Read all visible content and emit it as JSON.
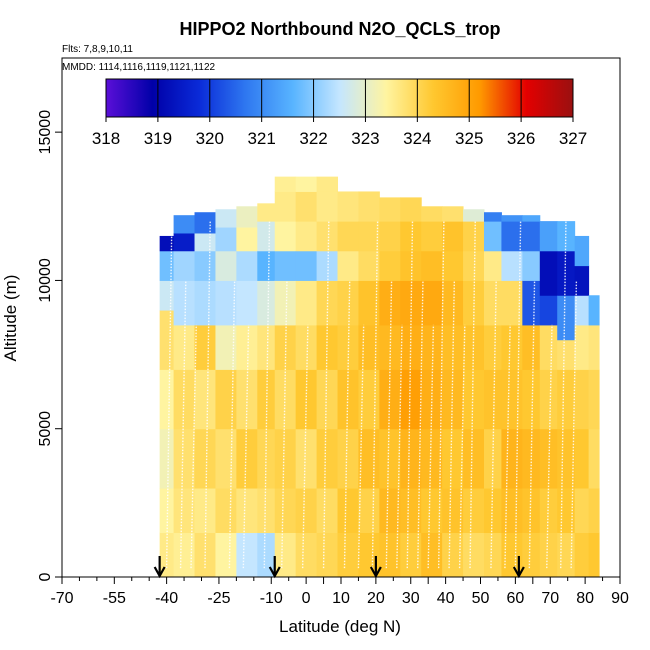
{
  "chart_data": {
    "type": "heatmap",
    "title": "HIPPO2 Northbound N2O_QCLS_trop",
    "flights_label": "Flts: 7,8,9,10,11",
    "mmdd_label": "MMDD: 1114,1116,1119,1121,1122",
    "xlabel": "Latitude (deg N)",
    "ylabel": "Altitude (m)",
    "xlim": [
      -70,
      90
    ],
    "ylim": [
      0,
      17500
    ],
    "x_tick_labels": [
      "-70",
      "-55",
      "-40",
      "-25",
      "-10",
      "0",
      "10",
      "20",
      "30",
      "40",
      "50",
      "60",
      "70",
      "80",
      "90"
    ],
    "y_tick_labels": [
      "0",
      "5000",
      "10000",
      "15000"
    ],
    "colorbar": {
      "labels": [
        "318",
        "319",
        "320",
        "321",
        "322",
        "323",
        "324",
        "325",
        "326",
        "327"
      ],
      "min": 318,
      "max": 327,
      "colors": [
        "#5b0fd8",
        "#0000a8",
        "#0a2bd8",
        "#2f78f0",
        "#58b4ff",
        "#c4e6ff",
        "#fff4a0",
        "#ffc830",
        "#ff9a00",
        "#e30000",
        "#9a1010"
      ]
    },
    "flight_markers_lat": [
      -42,
      -9,
      20,
      61
    ],
    "columns": [
      {
        "lat0": -42,
        "lat1": -38,
        "alt_top": 11500,
        "levels": [
          [
            0,
            323.6
          ],
          [
            1500,
            323.4
          ],
          [
            3000,
            323.2
          ],
          [
            5000,
            323.4
          ],
          [
            7000,
            323.8
          ],
          [
            9000,
            322.6
          ],
          [
            10000,
            321.8
          ],
          [
            11000,
            319.2
          ]
        ]
      },
      {
        "lat0": -38,
        "lat1": -32,
        "alt_top": 12200,
        "levels": [
          [
            0,
            323.5
          ],
          [
            1500,
            323.7
          ],
          [
            3000,
            323.8
          ],
          [
            5000,
            323.9
          ],
          [
            7000,
            323.6
          ],
          [
            8500,
            322.4
          ],
          [
            10000,
            322.2
          ],
          [
            11000,
            319.5
          ],
          [
            11600,
            321.0
          ]
        ]
      },
      {
        "lat0": -32,
        "lat1": -26,
        "alt_top": 12300,
        "levels": [
          [
            0,
            323.8
          ],
          [
            1500,
            323.6
          ],
          [
            3000,
            324.0
          ],
          [
            5000,
            323.7
          ],
          [
            7000,
            324.2
          ],
          [
            8500,
            322.3
          ],
          [
            10000,
            322.0
          ],
          [
            11000,
            322.6
          ],
          [
            11600,
            320.6
          ]
        ]
      },
      {
        "lat0": -26,
        "lat1": -20,
        "alt_top": 12400,
        "levels": [
          [
            0,
            323.4
          ],
          [
            1500,
            323.9
          ],
          [
            3000,
            323.8
          ],
          [
            5000,
            324.1
          ],
          [
            7000,
            323.2
          ],
          [
            8500,
            322.4
          ],
          [
            10000,
            322.8
          ],
          [
            11000,
            322.2
          ],
          [
            11800,
            322.6
          ]
        ]
      },
      {
        "lat0": -20,
        "lat1": -14,
        "alt_top": 12500,
        "levels": [
          [
            0,
            322.5
          ],
          [
            1500,
            323.7
          ],
          [
            3000,
            324.2
          ],
          [
            5000,
            323.8
          ],
          [
            7000,
            323.5
          ],
          [
            8500,
            322.5
          ],
          [
            10000,
            322.3
          ],
          [
            11000,
            323.4
          ],
          [
            11800,
            323.1
          ]
        ]
      },
      {
        "lat0": -14,
        "lat1": -9,
        "alt_top": 12600,
        "levels": [
          [
            0,
            322.3
          ],
          [
            1500,
            323.8
          ],
          [
            3000,
            324.0
          ],
          [
            5000,
            324.2
          ],
          [
            7000,
            323.7
          ],
          [
            8500,
            322.8
          ],
          [
            10000,
            321.6
          ],
          [
            11000,
            322.7
          ],
          [
            12000,
            323.6
          ]
        ]
      },
      {
        "lat0": -9,
        "lat1": -3,
        "alt_top": 13500,
        "levels": [
          [
            0,
            323.6
          ],
          [
            1500,
            324.0
          ],
          [
            3000,
            324.1
          ],
          [
            5000,
            323.9
          ],
          [
            7000,
            324.1
          ],
          [
            8500,
            323.2
          ],
          [
            10000,
            321.8
          ],
          [
            11000,
            323.4
          ],
          [
            12000,
            323.6
          ],
          [
            13000,
            323.5
          ]
        ]
      },
      {
        "lat0": -3,
        "lat1": 3,
        "alt_top": 13500,
        "levels": [
          [
            0,
            323.9
          ],
          [
            1500,
            324.1
          ],
          [
            3000,
            323.8
          ],
          [
            5000,
            324.3
          ],
          [
            7000,
            323.9
          ],
          [
            8500,
            323.6
          ],
          [
            10000,
            321.8
          ],
          [
            11000,
            323.6
          ],
          [
            12000,
            323.8
          ],
          [
            13000,
            323.4
          ]
        ]
      },
      {
        "lat0": 3,
        "lat1": 9,
        "alt_top": 13500,
        "levels": [
          [
            0,
            324.0
          ],
          [
            1500,
            323.9
          ],
          [
            3000,
            324.2
          ],
          [
            5000,
            324.0
          ],
          [
            7000,
            324.3
          ],
          [
            8500,
            324.0
          ],
          [
            10000,
            322.3
          ],
          [
            11000,
            323.8
          ],
          [
            12000,
            323.6
          ],
          [
            13000,
            323.6
          ]
        ]
      },
      {
        "lat0": 9,
        "lat1": 15,
        "alt_top": 13000,
        "levels": [
          [
            0,
            324.2
          ],
          [
            1500,
            324.3
          ],
          [
            3000,
            324.1
          ],
          [
            5000,
            324.4
          ],
          [
            7000,
            324.2
          ],
          [
            8500,
            324.1
          ],
          [
            10000,
            323.6
          ],
          [
            11000,
            324.0
          ],
          [
            12000,
            323.7
          ]
        ]
      },
      {
        "lat0": 15,
        "lat1": 21,
        "alt_top": 13000,
        "levels": [
          [
            0,
            324.3
          ],
          [
            1500,
            324.1
          ],
          [
            3000,
            324.5
          ],
          [
            5000,
            324.2
          ],
          [
            7000,
            324.5
          ],
          [
            8500,
            324.4
          ],
          [
            10000,
            323.9
          ],
          [
            11000,
            324.0
          ],
          [
            12000,
            323.8
          ]
        ]
      },
      {
        "lat0": 21,
        "lat1": 27,
        "alt_top": 12800,
        "levels": [
          [
            0,
            324.4
          ],
          [
            1500,
            324.6
          ],
          [
            3000,
            324.4
          ],
          [
            5000,
            324.8
          ],
          [
            7000,
            324.6
          ],
          [
            8500,
            324.8
          ],
          [
            10000,
            324.2
          ],
          [
            11000,
            324.1
          ],
          [
            12000,
            323.9
          ]
        ]
      },
      {
        "lat0": 27,
        "lat1": 33,
        "alt_top": 12800,
        "levels": [
          [
            0,
            324.2
          ],
          [
            1500,
            324.5
          ],
          [
            3000,
            324.7
          ],
          [
            5000,
            325.1
          ],
          [
            7000,
            324.8
          ],
          [
            8500,
            324.9
          ],
          [
            10000,
            324.4
          ],
          [
            11000,
            324.3
          ],
          [
            12000,
            324.0
          ]
        ]
      },
      {
        "lat0": 33,
        "lat1": 39,
        "alt_top": 12500,
        "levels": [
          [
            0,
            324.5
          ],
          [
            1500,
            324.3
          ],
          [
            3000,
            324.6
          ],
          [
            5000,
            324.8
          ],
          [
            7000,
            324.7
          ],
          [
            8500,
            324.9
          ],
          [
            10000,
            324.5
          ],
          [
            11000,
            324.2
          ],
          [
            12000,
            323.9
          ]
        ]
      },
      {
        "lat0": 39,
        "lat1": 45,
        "alt_top": 12500,
        "levels": [
          [
            0,
            324.1
          ],
          [
            1500,
            324.4
          ],
          [
            3000,
            324.3
          ],
          [
            5000,
            324.6
          ],
          [
            7000,
            324.5
          ],
          [
            8500,
            324.6
          ],
          [
            10000,
            324.3
          ],
          [
            11000,
            324.4
          ],
          [
            12000,
            323.8
          ]
        ]
      },
      {
        "lat0": 45,
        "lat1": 51,
        "alt_top": 12400,
        "levels": [
          [
            0,
            323.9
          ],
          [
            1500,
            324.2
          ],
          [
            3000,
            324.5
          ],
          [
            5000,
            324.3
          ],
          [
            7000,
            324.4
          ],
          [
            8500,
            324.2
          ],
          [
            10000,
            324.0
          ],
          [
            11000,
            324.1
          ],
          [
            12000,
            322.9
          ]
        ]
      },
      {
        "lat0": 51,
        "lat1": 56,
        "alt_top": 12300,
        "levels": [
          [
            0,
            324.0
          ],
          [
            1500,
            324.3
          ],
          [
            3000,
            324.1
          ],
          [
            5000,
            324.4
          ],
          [
            7000,
            324.2
          ],
          [
            8500,
            323.9
          ],
          [
            10000,
            323.6
          ],
          [
            11000,
            321.8
          ],
          [
            12000,
            320.8
          ]
        ]
      },
      {
        "lat0": 56,
        "lat1": 62,
        "alt_top": 12200,
        "levels": [
          [
            0,
            324.3
          ],
          [
            1500,
            324.5
          ],
          [
            3000,
            324.7
          ],
          [
            5000,
            324.4
          ],
          [
            7000,
            324.3
          ],
          [
            8500,
            323.9
          ],
          [
            10000,
            322.4
          ],
          [
            11000,
            320.6
          ],
          [
            12000,
            321.1
          ]
        ]
      },
      {
        "lat0": 62,
        "lat1": 67,
        "alt_top": 12200,
        "levels": [
          [
            0,
            324.2
          ],
          [
            1500,
            324.4
          ],
          [
            3000,
            324.6
          ],
          [
            5000,
            324.3
          ],
          [
            7000,
            324.5
          ],
          [
            8500,
            320.3
          ],
          [
            10000,
            322.0
          ],
          [
            11000,
            320.6
          ],
          [
            12000,
            321.4
          ]
        ]
      },
      {
        "lat0": 67,
        "lat1": 72,
        "alt_top": 12000,
        "levels": [
          [
            0,
            324.1
          ],
          [
            1500,
            324.2
          ],
          [
            3000,
            324.5
          ],
          [
            5000,
            324.1
          ],
          [
            7000,
            323.9
          ],
          [
            8500,
            320.1
          ],
          [
            9500,
            319.2
          ],
          [
            11000,
            321.3
          ]
        ]
      },
      {
        "lat0": 72,
        "lat1": 77,
        "alt_top": 12000,
        "levels": [
          [
            0,
            324.0
          ],
          [
            1500,
            324.3
          ],
          [
            3000,
            324.4
          ],
          [
            5000,
            324.2
          ],
          [
            7000,
            323.8
          ],
          [
            8000,
            321.0
          ],
          [
            9500,
            319.4
          ],
          [
            11000,
            321.6
          ]
        ]
      },
      {
        "lat0": 77,
        "lat1": 81,
        "alt_top": 11500,
        "levels": [
          [
            0,
            324.2
          ],
          [
            1500,
            324.0
          ],
          [
            3000,
            324.3
          ],
          [
            5000,
            324.1
          ],
          [
            7000,
            323.6
          ],
          [
            8500,
            322.4
          ],
          [
            9500,
            319.3
          ],
          [
            10500,
            321.4
          ]
        ]
      },
      {
        "lat0": 81,
        "lat1": 84,
        "alt_top": 9500,
        "levels": [
          [
            0,
            324.3
          ],
          [
            1500,
            324.1
          ],
          [
            3000,
            323.9
          ],
          [
            5000,
            324.0
          ],
          [
            7000,
            323.7
          ],
          [
            8500,
            321.6
          ]
        ]
      }
    ]
  }
}
